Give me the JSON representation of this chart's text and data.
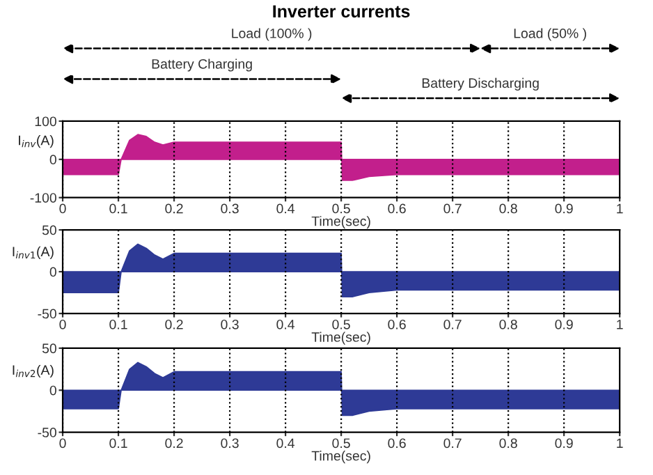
{
  "chart_data": [
    {
      "type": "area",
      "title": "Inverter currents",
      "ylabel": "I$_{inv}$(A)",
      "xlabel": "Time(sec)",
      "xlim": [
        0,
        1
      ],
      "xticks": [
        0,
        0.1,
        0.2,
        0.3,
        0.4,
        0.5,
        0.6,
        0.7,
        0.8,
        0.9,
        1
      ],
      "ylim": [
        -100,
        100
      ],
      "yticks": [
        -100,
        0,
        100
      ],
      "grid": "x",
      "annotations": [
        "Load (100% )",
        "Load (50% )",
        "Battery Charging",
        "Battery Discharging"
      ],
      "series": [
        {
          "color": "#c21f8c",
          "x": [
            0,
            0.1,
            0.105,
            0.12,
            0.135,
            0.15,
            0.165,
            0.18,
            0.2,
            0.3,
            0.4,
            0.5,
            0.502,
            0.52,
            0.55,
            0.6,
            0.8,
            1
          ],
          "values": [
            -40,
            -40,
            0,
            50,
            65,
            60,
            45,
            38,
            45,
            45,
            45,
            45,
            -55,
            -55,
            -45,
            -40,
            -40,
            -40
          ]
        }
      ]
    },
    {
      "type": "area",
      "ylabel": "I$_{inv1}$(A)",
      "xlabel": "Time(sec)",
      "xlim": [
        0,
        1
      ],
      "xticks": [
        0,
        0.1,
        0.2,
        0.3,
        0.4,
        0.5,
        0.6,
        0.7,
        0.8,
        0.9,
        1
      ],
      "ylim": [
        -50,
        50
      ],
      "yticks": [
        -50,
        0,
        50
      ],
      "grid": "x",
      "series": [
        {
          "color": "#2e3a96",
          "x": [
            0,
            0.1,
            0.105,
            0.12,
            0.135,
            0.15,
            0.165,
            0.18,
            0.2,
            0.3,
            0.4,
            0.5,
            0.502,
            0.52,
            0.55,
            0.6,
            0.8,
            1
          ],
          "values": [
            -25,
            -25,
            0,
            25,
            33,
            28,
            20,
            15,
            22,
            22,
            22,
            22,
            -30,
            -30,
            -25,
            -22,
            -22,
            -22
          ]
        }
      ]
    },
    {
      "type": "area",
      "ylabel": "I$_{inv2}$(A)",
      "xlabel": "Time(sec)",
      "xlim": [
        0,
        1
      ],
      "xticks": [
        0,
        0.1,
        0.2,
        0.3,
        0.4,
        0.5,
        0.6,
        0.7,
        0.8,
        0.9,
        1
      ],
      "ylim": [
        -50,
        50
      ],
      "yticks": [
        -50,
        0,
        50
      ],
      "grid": "x",
      "series": [
        {
          "color": "#2e3a96",
          "x": [
            0,
            0.1,
            0.105,
            0.12,
            0.135,
            0.15,
            0.165,
            0.18,
            0.2,
            0.3,
            0.4,
            0.5,
            0.502,
            0.52,
            0.55,
            0.6,
            0.8,
            1
          ],
          "values": [
            -22,
            -22,
            0,
            25,
            33,
            28,
            20,
            15,
            22,
            22,
            22,
            22,
            -30,
            -30,
            -25,
            -22,
            -22,
            -22
          ]
        }
      ]
    }
  ]
}
